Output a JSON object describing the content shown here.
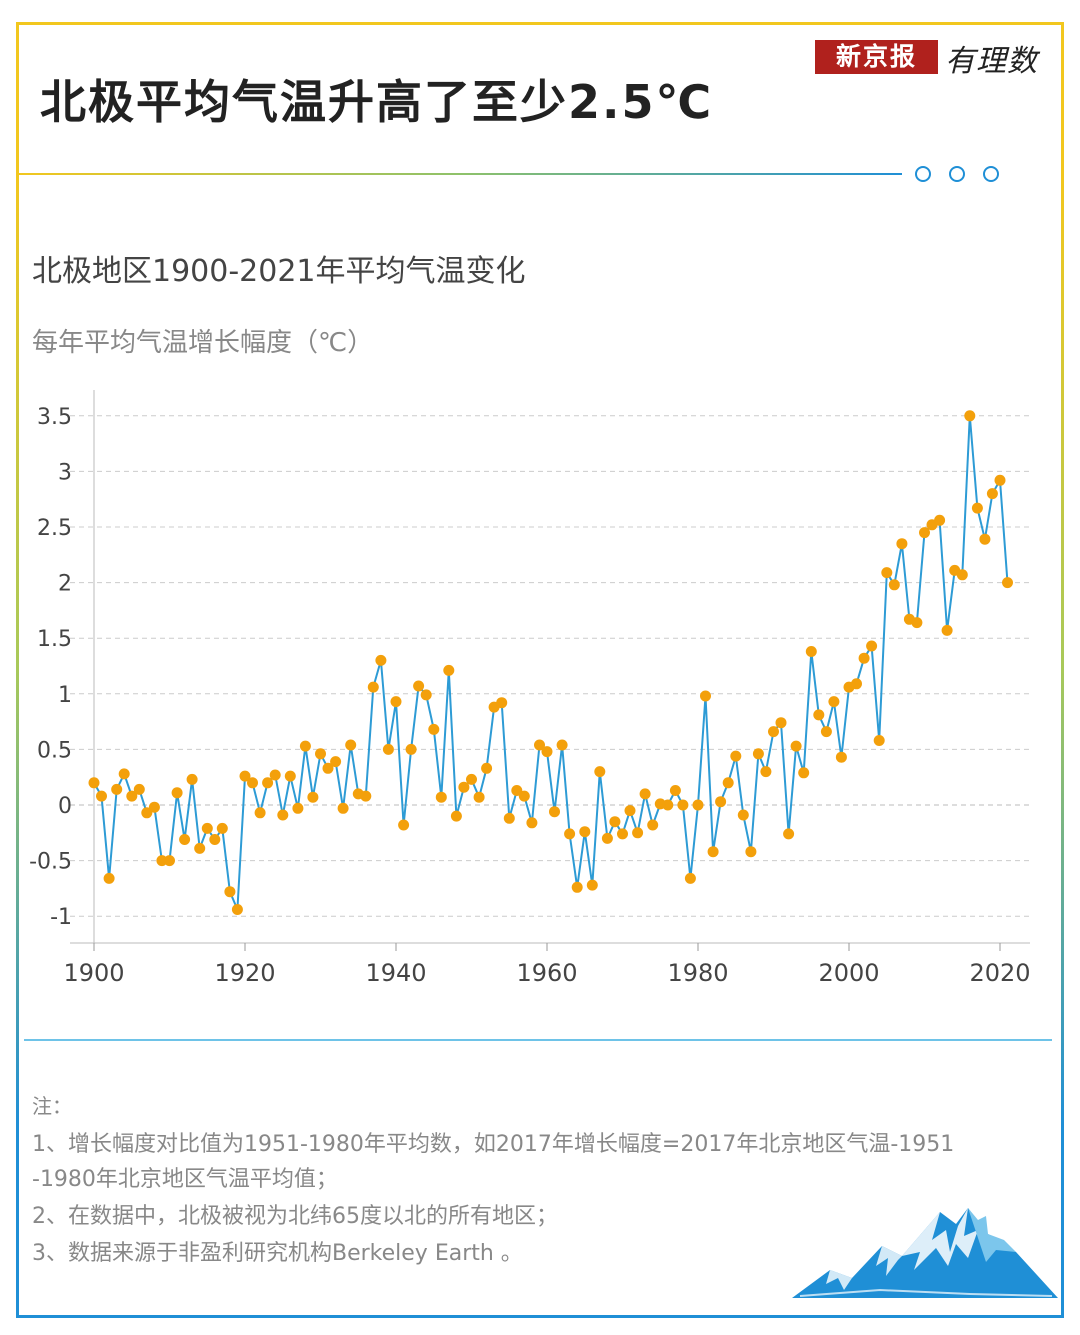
{
  "header": {
    "title": "北极平均气温升高了至少2.5℃",
    "brand_name": "新京报",
    "brand_script": "有理数"
  },
  "colors": {
    "line": "#2d9bd5",
    "marker": "#f3a00b",
    "grid": "#cccccc",
    "frame_top": "#f2c71e",
    "frame_bottom": "#1f8fd6"
  },
  "chart_data": {
    "type": "line",
    "title": "北极地区1900-2021年平均气温变化",
    "ylabel": "每年平均气温增长幅度（℃）",
    "xlabel": "",
    "xlim": [
      1900,
      2021
    ],
    "ylim": [
      -1.2,
      3.7
    ],
    "x_ticks": [
      1900,
      1920,
      1940,
      1960,
      1980,
      2000,
      2020
    ],
    "y_ticks": [
      -1,
      -0.5,
      0,
      0.5,
      1,
      1.5,
      2,
      2.5,
      3,
      3.5
    ],
    "y_tick_labels": [
      "-1",
      "-0.5",
      "0",
      "0.5",
      "1",
      "1.5",
      "2",
      "2.5",
      "3",
      "3.5"
    ],
    "grid": "horizontal dashed",
    "series": [
      {
        "x": [
          1900,
          1901,
          1902,
          1903,
          1904,
          1905,
          1906,
          1907,
          1908,
          1909,
          1910,
          1911,
          1912,
          1913,
          1914,
          1915,
          1916,
          1917,
          1918,
          1919,
          1920,
          1921,
          1922,
          1923,
          1924,
          1925,
          1926,
          1927,
          1928,
          1929,
          1930,
          1931,
          1932,
          1933,
          1934,
          1935,
          1936,
          1937,
          1938,
          1939,
          1940,
          1941,
          1942,
          1943,
          1944,
          1945,
          1946,
          1947,
          1948,
          1949,
          1950,
          1951,
          1952,
          1953,
          1954,
          1955,
          1956,
          1957,
          1958,
          1959,
          1960,
          1961,
          1962,
          1963,
          1964,
          1965,
          1966,
          1967,
          1968,
          1969,
          1970,
          1971,
          1972,
          1973,
          1974,
          1975,
          1976,
          1977,
          1978,
          1979,
          1980,
          1981,
          1982,
          1983,
          1984,
          1985,
          1986,
          1987,
          1988,
          1989,
          1990,
          1991,
          1992,
          1993,
          1994,
          1995,
          1996,
          1997,
          1998,
          1999,
          2000,
          2001,
          2002,
          2003,
          2004,
          2005,
          2006,
          2007,
          2008,
          2009,
          2010,
          2011,
          2012,
          2013,
          2014,
          2015,
          2016,
          2017,
          2018,
          2019,
          2020,
          2021
        ],
        "y": [
          0.2,
          0.08,
          -0.66,
          0.14,
          0.28,
          0.08,
          0.14,
          -0.07,
          -0.02,
          -0.5,
          -0.5,
          0.11,
          -0.31,
          0.23,
          -0.39,
          -0.21,
          -0.31,
          -0.21,
          -0.78,
          -0.94,
          0.26,
          0.2,
          -0.07,
          0.2,
          0.27,
          -0.09,
          0.26,
          -0.03,
          0.53,
          0.07,
          0.46,
          0.33,
          0.39,
          -0.03,
          0.54,
          0.1,
          0.08,
          1.06,
          1.3,
          0.5,
          0.93,
          -0.18,
          0.5,
          1.07,
          0.99,
          0.68,
          0.07,
          1.21,
          -0.1,
          0.16,
          0.23,
          0.07,
          0.33,
          0.88,
          0.92,
          -0.12,
          0.13,
          0.08,
          -0.16,
          0.54,
          0.48,
          -0.06,
          0.54,
          -0.26,
          -0.74,
          -0.24,
          -0.72,
          0.3,
          -0.3,
          -0.15,
          -0.26,
          -0.05,
          -0.25,
          0.1,
          -0.18,
          0.01,
          0.0,
          0.13,
          0.0,
          -0.66,
          0.0,
          0.98,
          -0.42,
          0.03,
          0.2,
          0.44,
          -0.09,
          -0.42,
          0.46,
          0.3,
          0.66,
          0.74,
          -0.26,
          0.53,
          0.29,
          1.38,
          0.81,
          0.66,
          0.93,
          0.43,
          1.06,
          1.09,
          1.32,
          1.43,
          0.58,
          2.09,
          1.98,
          2.35,
          1.67,
          1.64,
          2.45,
          2.52,
          2.56,
          1.57,
          2.11,
          2.07,
          3.5,
          2.67,
          2.39,
          2.8,
          2.92,
          2.0
        ]
      }
    ]
  },
  "notes": {
    "heading": "注：",
    "line1a": "1、增长幅度对比值为1951-1980年平均数，如2017年增长幅度=2017年北京地区气温-1951",
    "line1b": "-1980年北京地区气温平均值；",
    "line2": "2、在数据中，北极被视为北纬65度以北的所有地区；",
    "line3": "3、数据来源于非盈利研究机构Berkeley Earth 。"
  }
}
